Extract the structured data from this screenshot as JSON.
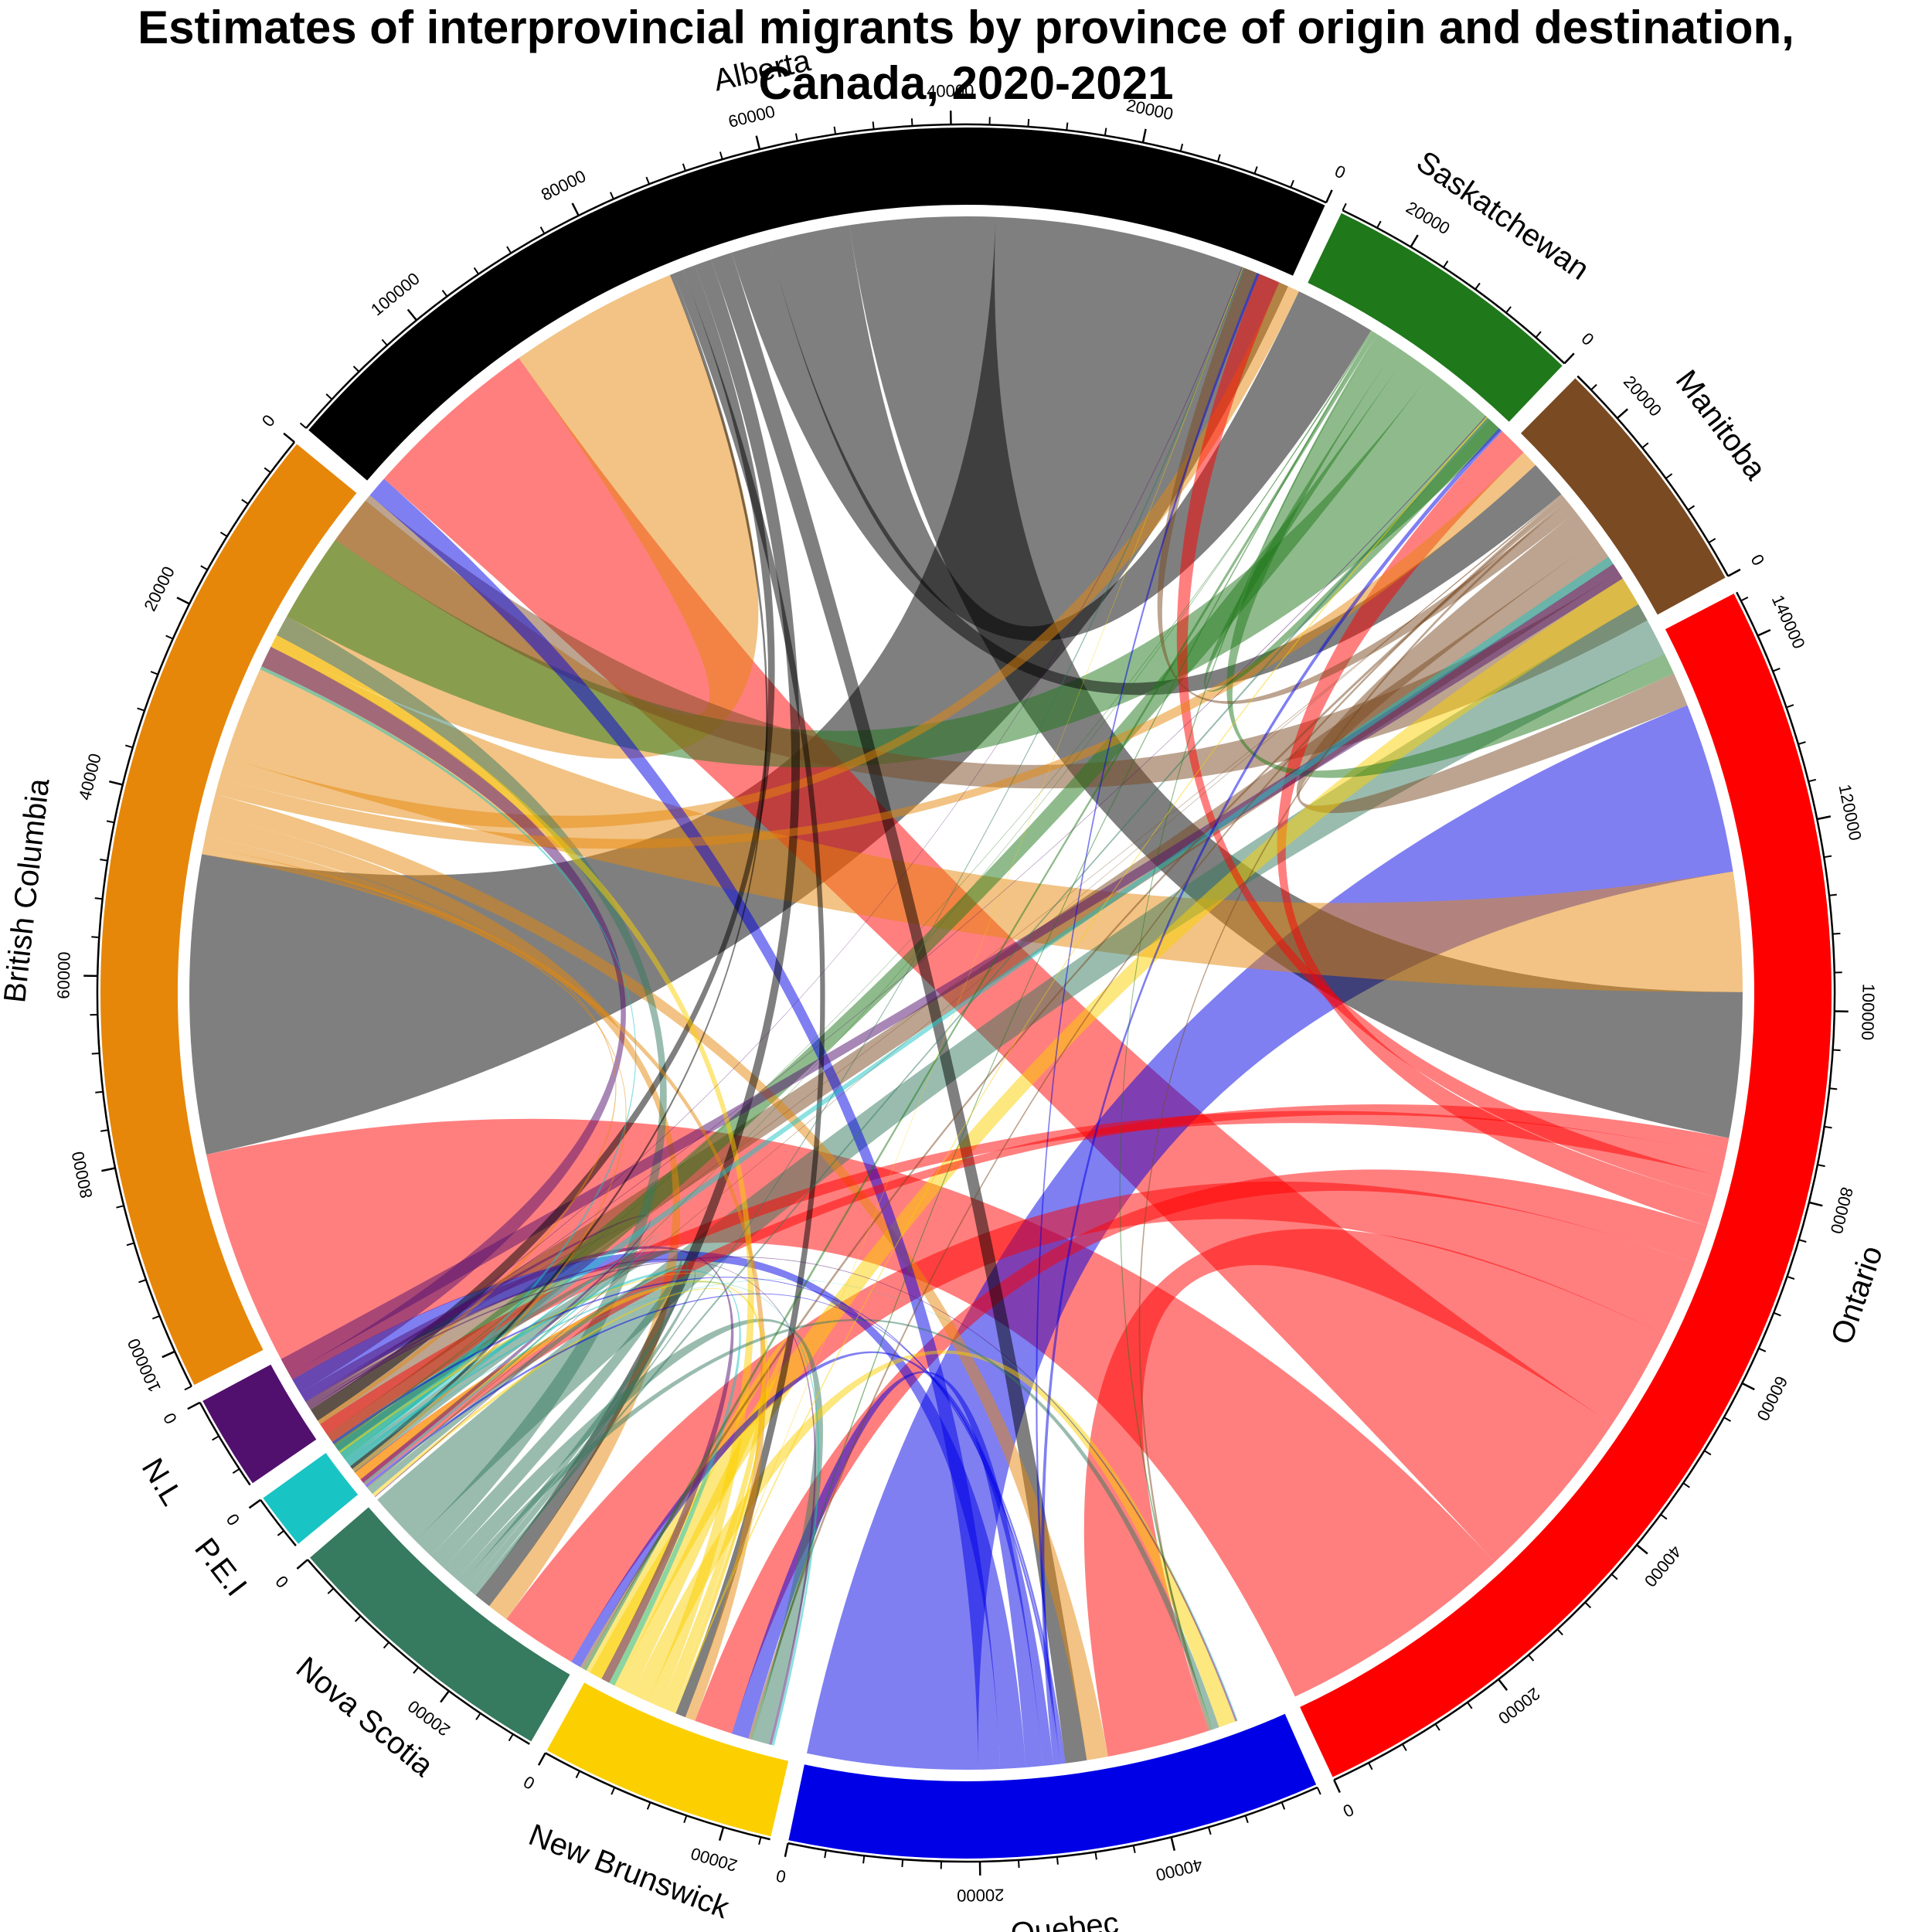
{
  "chart_data": {
    "type": "chord",
    "title_line1": "Estimates of interprovincial migrants by province of origin and destination,",
    "title_line2": "Canada, 2020-2021",
    "tick_step": 20000,
    "sectors": [
      {
        "name": "Alberta",
        "total": 116000,
        "color": "#000000"
      },
      {
        "name": "British Columbia",
        "total": 104000,
        "color": "#E6870A"
      },
      {
        "name": "N.L",
        "total": 10000,
        "color": "#52106E"
      },
      {
        "name": "P.E.I",
        "total": 6000,
        "color": "#19C4C4"
      },
      {
        "name": "Nova Scotia",
        "total": 30000,
        "color": "#367A5F"
      },
      {
        "name": "New Brunswick",
        "total": 25000,
        "color": "#FCCF00"
      },
      {
        "name": "Quebec",
        "total": 56000,
        "color": "#0000E6"
      },
      {
        "name": "Ontario",
        "total": 145000,
        "color": "#FF0000"
      },
      {
        "name": "Manitoba",
        "total": 26000,
        "color": "#7A4A22"
      },
      {
        "name": "Saskatchewan",
        "total": 28000,
        "color": "#1F781A"
      }
    ],
    "flows": [
      [
        "Alberta",
        "British Columbia",
        35000
      ],
      [
        "Alberta",
        "Ontario",
        17000
      ],
      [
        "Alberta",
        "Saskatchewan",
        9500
      ],
      [
        "Alberta",
        "Manitoba",
        4500
      ],
      [
        "Alberta",
        "Quebec",
        2500
      ],
      [
        "Alberta",
        "Nova Scotia",
        2000
      ],
      [
        "Alberta",
        "N.L",
        1500
      ],
      [
        "Alberta",
        "New Brunswick",
        1200
      ],
      [
        "Alberta",
        "P.E.I",
        400
      ],
      [
        "British Columbia",
        "Alberta",
        20000
      ],
      [
        "British Columbia",
        "Ontario",
        14000
      ],
      [
        "British Columbia",
        "Saskatchewan",
        2500
      ],
      [
        "British Columbia",
        "Manitoba",
        2000
      ],
      [
        "British Columbia",
        "Quebec",
        2500
      ],
      [
        "British Columbia",
        "Nova Scotia",
        2500
      ],
      [
        "British Columbia",
        "New Brunswick",
        1200
      ],
      [
        "British Columbia",
        "N.L",
        500
      ],
      [
        "British Columbia",
        "P.E.I",
        400
      ],
      [
        "Ontario",
        "British Columbia",
        28000
      ],
      [
        "Ontario",
        "Alberta",
        21000
      ],
      [
        "Ontario",
        "Quebec",
        12000
      ],
      [
        "Ontario",
        "Nova Scotia",
        9000
      ],
      [
        "Ontario",
        "New Brunswick",
        4500
      ],
      [
        "Ontario",
        "Manitoba",
        3500
      ],
      [
        "Ontario",
        "Saskatchewan",
        2500
      ],
      [
        "Ontario",
        "N.L",
        2500
      ],
      [
        "Ontario",
        "P.E.I",
        2000
      ],
      [
        "Quebec",
        "Ontario",
        20000
      ],
      [
        "Quebec",
        "Alberta",
        2500
      ],
      [
        "Quebec",
        "British Columbia",
        3000
      ],
      [
        "Quebec",
        "New Brunswick",
        2000
      ],
      [
        "Quebec",
        "Nova Scotia",
        1200
      ],
      [
        "Quebec",
        "Manitoba",
        500
      ],
      [
        "Quebec",
        "Saskatchewan",
        300
      ],
      [
        "Quebec",
        "N.L",
        300
      ],
      [
        "Quebec",
        "P.E.I",
        300
      ],
      [
        "Manitoba",
        "Alberta",
        6500
      ],
      [
        "Manitoba",
        "British Columbia",
        4500
      ],
      [
        "Manitoba",
        "Ontario",
        4000
      ],
      [
        "Manitoba",
        "Saskatchewan",
        1500
      ],
      [
        "Manitoba",
        "Quebec",
        300
      ],
      [
        "Manitoba",
        "Nova Scotia",
        400
      ],
      [
        "Manitoba",
        "New Brunswick",
        300
      ],
      [
        "Manitoba",
        "N.L",
        100
      ],
      [
        "Manitoba",
        "P.E.I",
        100
      ],
      [
        "Saskatchewan",
        "Alberta",
        10500
      ],
      [
        "Saskatchewan",
        "British Columbia",
        3500
      ],
      [
        "Saskatchewan",
        "Manitoba",
        1500
      ],
      [
        "Saskatchewan",
        "Ontario",
        2500
      ],
      [
        "Saskatchewan",
        "Quebec",
        200
      ],
      [
        "Saskatchewan",
        "Nova Scotia",
        400
      ],
      [
        "Saskatchewan",
        "New Brunswick",
        200
      ],
      [
        "Saskatchewan",
        "N.L",
        100
      ],
      [
        "Saskatchewan",
        "P.E.I",
        100
      ],
      [
        "Nova Scotia",
        "Ontario",
        6500
      ],
      [
        "Nova Scotia",
        "Alberta",
        2500
      ],
      [
        "Nova Scotia",
        "British Columbia",
        2000
      ],
      [
        "Nova Scotia",
        "New Brunswick",
        2000
      ],
      [
        "Nova Scotia",
        "Quebec",
        800
      ],
      [
        "Nova Scotia",
        "N.L",
        800
      ],
      [
        "Nova Scotia",
        "P.E.I",
        800
      ],
      [
        "Nova Scotia",
        "Manitoba",
        300
      ],
      [
        "Nova Scotia",
        "Saskatchewan",
        200
      ],
      [
        "New Brunswick",
        "Ontario",
        3500
      ],
      [
        "New Brunswick",
        "Nova Scotia",
        2000
      ],
      [
        "New Brunswick",
        "Quebec",
        2000
      ],
      [
        "New Brunswick",
        "Alberta",
        1500
      ],
      [
        "New Brunswick",
        "British Columbia",
        1000
      ],
      [
        "New Brunswick",
        "P.E.I",
        400
      ],
      [
        "New Brunswick",
        "N.L",
        300
      ],
      [
        "New Brunswick",
        "Manitoba",
        200
      ],
      [
        "New Brunswick",
        "Saskatchewan",
        100
      ],
      [
        "N.L",
        "Ontario",
        2000
      ],
      [
        "N.L",
        "Alberta",
        2500
      ],
      [
        "N.L",
        "Nova Scotia",
        1000
      ],
      [
        "N.L",
        "British Columbia",
        500
      ],
      [
        "N.L",
        "New Brunswick",
        300
      ],
      [
        "N.L",
        "Quebec",
        200
      ],
      [
        "N.L",
        "Manitoba",
        100
      ],
      [
        "N.L",
        "Saskatchewan",
        100
      ],
      [
        "N.L",
        "P.E.I",
        100
      ],
      [
        "P.E.I",
        "Ontario",
        1000
      ],
      [
        "P.E.I",
        "Nova Scotia",
        700
      ],
      [
        "P.E.I",
        "Alberta",
        400
      ],
      [
        "P.E.I",
        "New Brunswick",
        300
      ],
      [
        "P.E.I",
        "British Columbia",
        300
      ],
      [
        "P.E.I",
        "Quebec",
        100
      ],
      [
        "P.E.I",
        "N.L",
        100
      ]
    ]
  }
}
